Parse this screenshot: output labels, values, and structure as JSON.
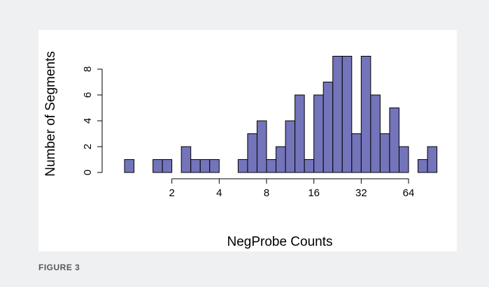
{
  "chart_data": {
    "type": "histogram",
    "x_label": "NegProbe Counts",
    "y_label": "Number of Segments",
    "bins": [
      1,
      1.149,
      1.32,
      1.516,
      1.741,
      2,
      2.297,
      2.639,
      3.031,
      3.482,
      4,
      4.595,
      5.278,
      6.063,
      6.964,
      8,
      9.19,
      10.556,
      12.126,
      13.929,
      16,
      18.379,
      21.112,
      24.251,
      27.858,
      32,
      36.758,
      42.224,
      48.503,
      55.715,
      64,
      73.517,
      84.449,
      97.006
    ],
    "values": [
      1,
      0,
      0,
      1,
      1,
      0,
      2,
      1,
      1,
      1,
      0,
      0,
      1,
      3,
      4,
      1,
      2,
      4,
      6,
      1,
      6,
      7,
      9,
      9,
      3,
      9,
      6,
      3,
      5,
      2,
      0,
      1,
      2
    ],
    "color": "#7474bb",
    "x_log": true,
    "xlim": [
      1,
      97.006
    ],
    "xticks": [
      2,
      4,
      8,
      16,
      32,
      64
    ],
    "ylim": [
      0,
      9
    ],
    "yticks": [
      0,
      2,
      4,
      6,
      8
    ]
  },
  "caption": "FIGURE 3"
}
